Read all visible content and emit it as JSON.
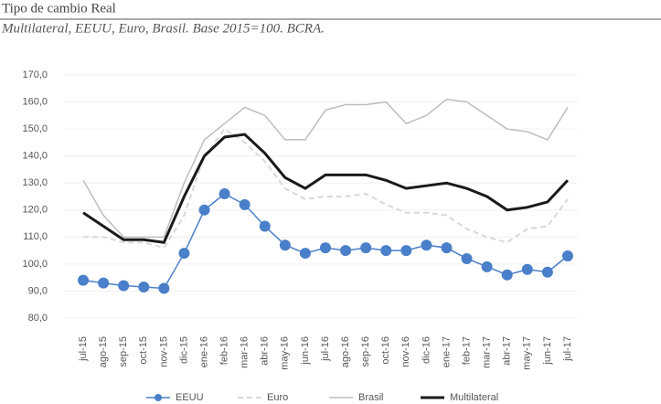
{
  "chart_data": {
    "type": "line",
    "title": "Tipo de cambio Real",
    "subtitle": "Multilateral, EEUU, Euro, Brasil. Base 2015=100. BCRA.",
    "categories": [
      "jul-15",
      "ago-15",
      "sep-15",
      "oct-15",
      "nov-15",
      "dic-15",
      "ene-16",
      "feb-16",
      "mar-16",
      "abr-16",
      "may-16",
      "jun-16",
      "jul-16",
      "ago-16",
      "sep-16",
      "oct-16",
      "nov-16",
      "dic-16",
      "ene-17",
      "feb-17",
      "mar-17",
      "abr-17",
      "may-17",
      "jun-17",
      "jul-17"
    ],
    "series": [
      {
        "name": "EEUU",
        "color": "#4a7fc9",
        "style": "markers",
        "values": [
          94,
          93,
          92,
          91.5,
          91,
          104,
          120,
          126,
          122,
          114,
          107,
          104,
          106,
          105,
          106,
          105,
          105,
          107,
          106,
          102,
          99,
          96,
          98,
          97,
          103
        ]
      },
      {
        "name": "Euro",
        "color": "#d8d8d8",
        "style": "dashed",
        "values": [
          110,
          110,
          108,
          108,
          106,
          118,
          140,
          150,
          145,
          138,
          128,
          124,
          125,
          125,
          126,
          122,
          119,
          119,
          118,
          113,
          110,
          108,
          113,
          114,
          124
        ]
      },
      {
        "name": "Brasil",
        "color": "#bdbdbd",
        "style": "line",
        "values": [
          131,
          118,
          110,
          110,
          110,
          130,
          146,
          152,
          158,
          155,
          146,
          146,
          157,
          159,
          159,
          160,
          152,
          155,
          161,
          160,
          155,
          150,
          149,
          146,
          158
        ]
      },
      {
        "name": "Multilateral",
        "color": "#1a1a1a",
        "style": "thick",
        "values": [
          119,
          114,
          109,
          109,
          108,
          125,
          140,
          147,
          148,
          141,
          132,
          128,
          133,
          133,
          133,
          131,
          128,
          129,
          130,
          128,
          125,
          120,
          121,
          123,
          131
        ]
      }
    ],
    "ylim": [
      80,
      170
    ],
    "yticks": [
      {
        "value": 80,
        "label": "80,0"
      },
      {
        "value": 90,
        "label": "90,0"
      },
      {
        "value": 100,
        "label": "100,0"
      },
      {
        "value": 110,
        "label": "110,0"
      },
      {
        "value": 120,
        "label": "120,0"
      },
      {
        "value": 130,
        "label": "130,0"
      },
      {
        "value": 140,
        "label": "140,0"
      },
      {
        "value": 150,
        "label": "150,0"
      },
      {
        "value": 160,
        "label": "160,0"
      },
      {
        "value": 170,
        "label": "170,0"
      }
    ],
    "grid": true,
    "legend": "bottom"
  }
}
